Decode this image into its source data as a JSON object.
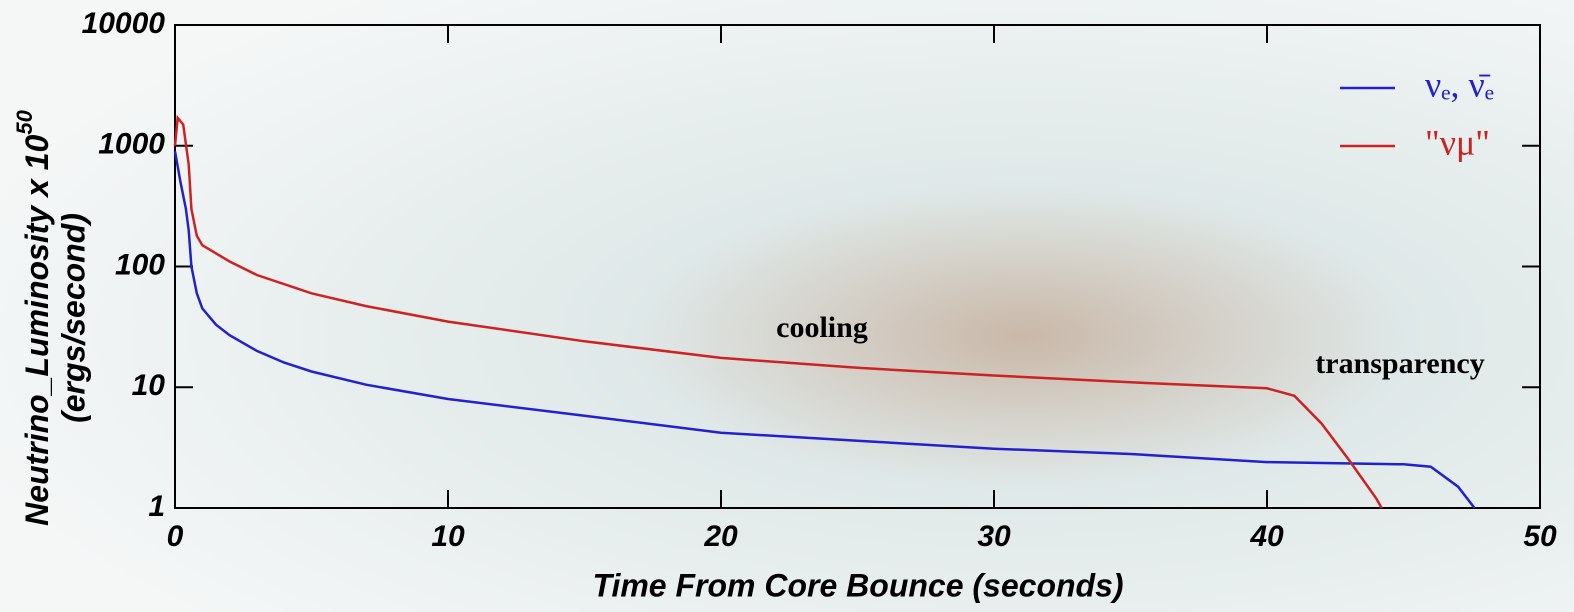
{
  "chart_data": {
    "type": "line",
    "xlabel": "Time From Core Bounce  (seconds)",
    "ylabel": "Neutrino_Luminosity x 10",
    "ylabel_exponent": "50",
    "ylabel_units": "(ergs/second)",
    "annotations": [
      "cooling",
      "transparency"
    ],
    "xlim": [
      0,
      50
    ],
    "xticks": [
      0,
      10,
      20,
      30,
      40,
      50
    ],
    "ylim": [
      1,
      10000
    ],
    "yticks": [
      1,
      10,
      100,
      1000,
      10000
    ],
    "log_y": true,
    "legend": "upper right",
    "series": [
      {
        "name": "νₑ, ν̄ₑ",
        "color": "#2222cc",
        "x": [
          0,
          0.2,
          0.4,
          0.5,
          0.6,
          0.8,
          1,
          1.5,
          2,
          3,
          4,
          5,
          7,
          10,
          15,
          20,
          25,
          30,
          35,
          40,
          45,
          46,
          47,
          47.6
        ],
        "values": [
          900,
          500,
          300,
          200,
          100,
          60,
          45,
          33,
          27,
          20,
          16,
          13.5,
          10.5,
          8,
          5.8,
          4.2,
          3.6,
          3.1,
          2.8,
          2.4,
          2.3,
          2.2,
          1.5,
          1
        ]
      },
      {
        "name": "\"νμ\"",
        "color": "#cc2222",
        "x": [
          0,
          0.1,
          0.3,
          0.5,
          0.6,
          0.8,
          1,
          2,
          3,
          5,
          7,
          10,
          15,
          20,
          25,
          30,
          35,
          40,
          41,
          42,
          43,
          44,
          44.2
        ],
        "values": [
          1000,
          1700,
          1500,
          700,
          300,
          180,
          150,
          110,
          85,
          60,
          47,
          35,
          24,
          17.5,
          14.5,
          12.5,
          11,
          9.8,
          8.5,
          5,
          2.5,
          1.2,
          1
        ]
      }
    ]
  }
}
